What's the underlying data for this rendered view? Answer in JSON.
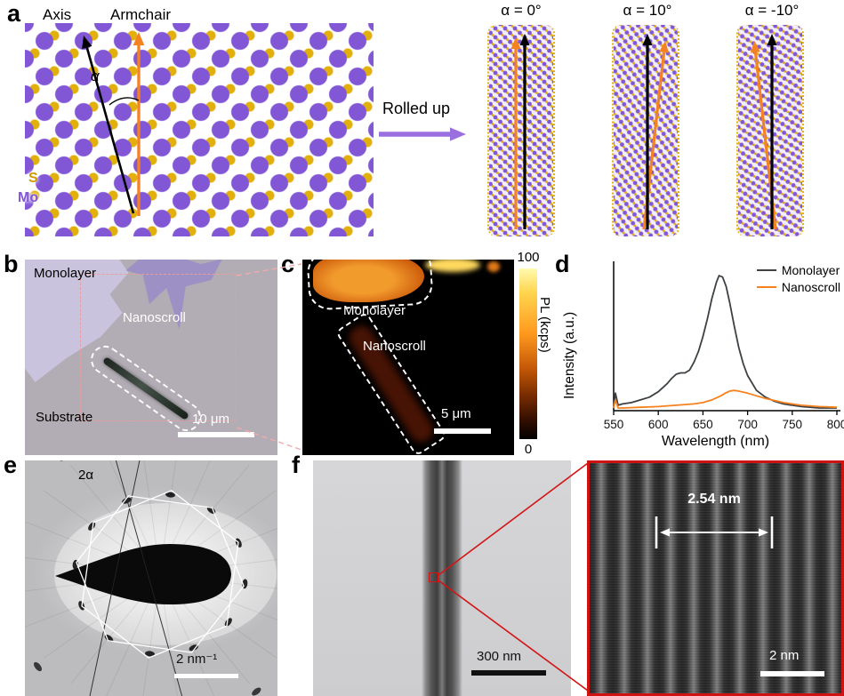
{
  "colors": {
    "mo_purple": "#8257d6",
    "s_yellow": "#e3af0a",
    "arrow_orange": "#f58220",
    "arrow_purple": "#9a6fe0",
    "highlight_red": "#d31414",
    "monolayer_curve": "#3b4144",
    "nanoscroll_curve": "#f6821f"
  },
  "figure": {
    "panels": {
      "a": {
        "label": "a",
        "axis_label": "Axis",
        "armchair_label": "Armchair",
        "alpha_symbol": "α",
        "rolled_up": "Rolled up",
        "scroll_angles": [
          "α = 0°",
          "α = 10°",
          "α = -10°"
        ],
        "legend": {
          "s": "S",
          "mo": "Mo"
        }
      },
      "b": {
        "label": "b",
        "monolayer": "Monolayer",
        "nanoscroll": "Nanoscroll",
        "substrate": "Substrate",
        "scale_bar": "10 μm"
      },
      "c": {
        "label": "c",
        "monolayer": "Monolayer",
        "nanoscroll": "Nanoscroll",
        "scale_bar": "5 μm",
        "colorbar": {
          "max": "100",
          "min": "0",
          "label": "PL (kcps)"
        }
      },
      "d": {
        "label": "d"
      },
      "e": {
        "label": "e",
        "angle_label": "2α",
        "scale_bar": "2 nm⁻¹"
      },
      "f": {
        "label": "f",
        "scale_bar": "300 nm",
        "zoom": {
          "spacing": "2.54 nm",
          "scale_bar": "2 nm"
        }
      }
    }
  },
  "chart_data": {
    "type": "line",
    "title": "",
    "xlabel": "Wavelength (nm)",
    "ylabel": "Intensity (a.u.)",
    "xlim": [
      550,
      800
    ],
    "ylim": [
      0,
      1.08
    ],
    "x_ticks": [
      550,
      600,
      650,
      700,
      750,
      800
    ],
    "grid": false,
    "legend_position": "top-right",
    "series": [
      {
        "name": "Monolayer",
        "color": "#3b4144",
        "x": [
          550,
          552,
          555,
          560,
          570,
          580,
          590,
          600,
          610,
          615,
          620,
          625,
          630,
          635,
          640,
          645,
          650,
          655,
          660,
          665,
          668,
          672,
          676,
          680,
          685,
          690,
          695,
          700,
          710,
          720,
          730,
          740,
          760,
          780,
          800
        ],
        "y": [
          0.03,
          0.13,
          0.04,
          0.05,
          0.06,
          0.08,
          0.1,
          0.14,
          0.2,
          0.24,
          0.27,
          0.28,
          0.28,
          0.3,
          0.36,
          0.44,
          0.55,
          0.68,
          0.83,
          0.95,
          1.0,
          0.99,
          0.92,
          0.8,
          0.63,
          0.47,
          0.35,
          0.26,
          0.15,
          0.1,
          0.07,
          0.05,
          0.03,
          0.02,
          0.02
        ]
      },
      {
        "name": "Nanoscroll",
        "color": "#f6821f",
        "x": [
          550,
          552,
          555,
          560,
          580,
          600,
          620,
          640,
          650,
          660,
          670,
          675,
          680,
          685,
          690,
          700,
          710,
          720,
          740,
          760,
          780,
          800
        ],
        "y": [
          0.02,
          0.08,
          0.02,
          0.02,
          0.025,
          0.03,
          0.04,
          0.05,
          0.06,
          0.08,
          0.11,
          0.13,
          0.145,
          0.15,
          0.145,
          0.13,
          0.11,
          0.09,
          0.06,
          0.04,
          0.03,
          0.025
        ]
      }
    ]
  }
}
